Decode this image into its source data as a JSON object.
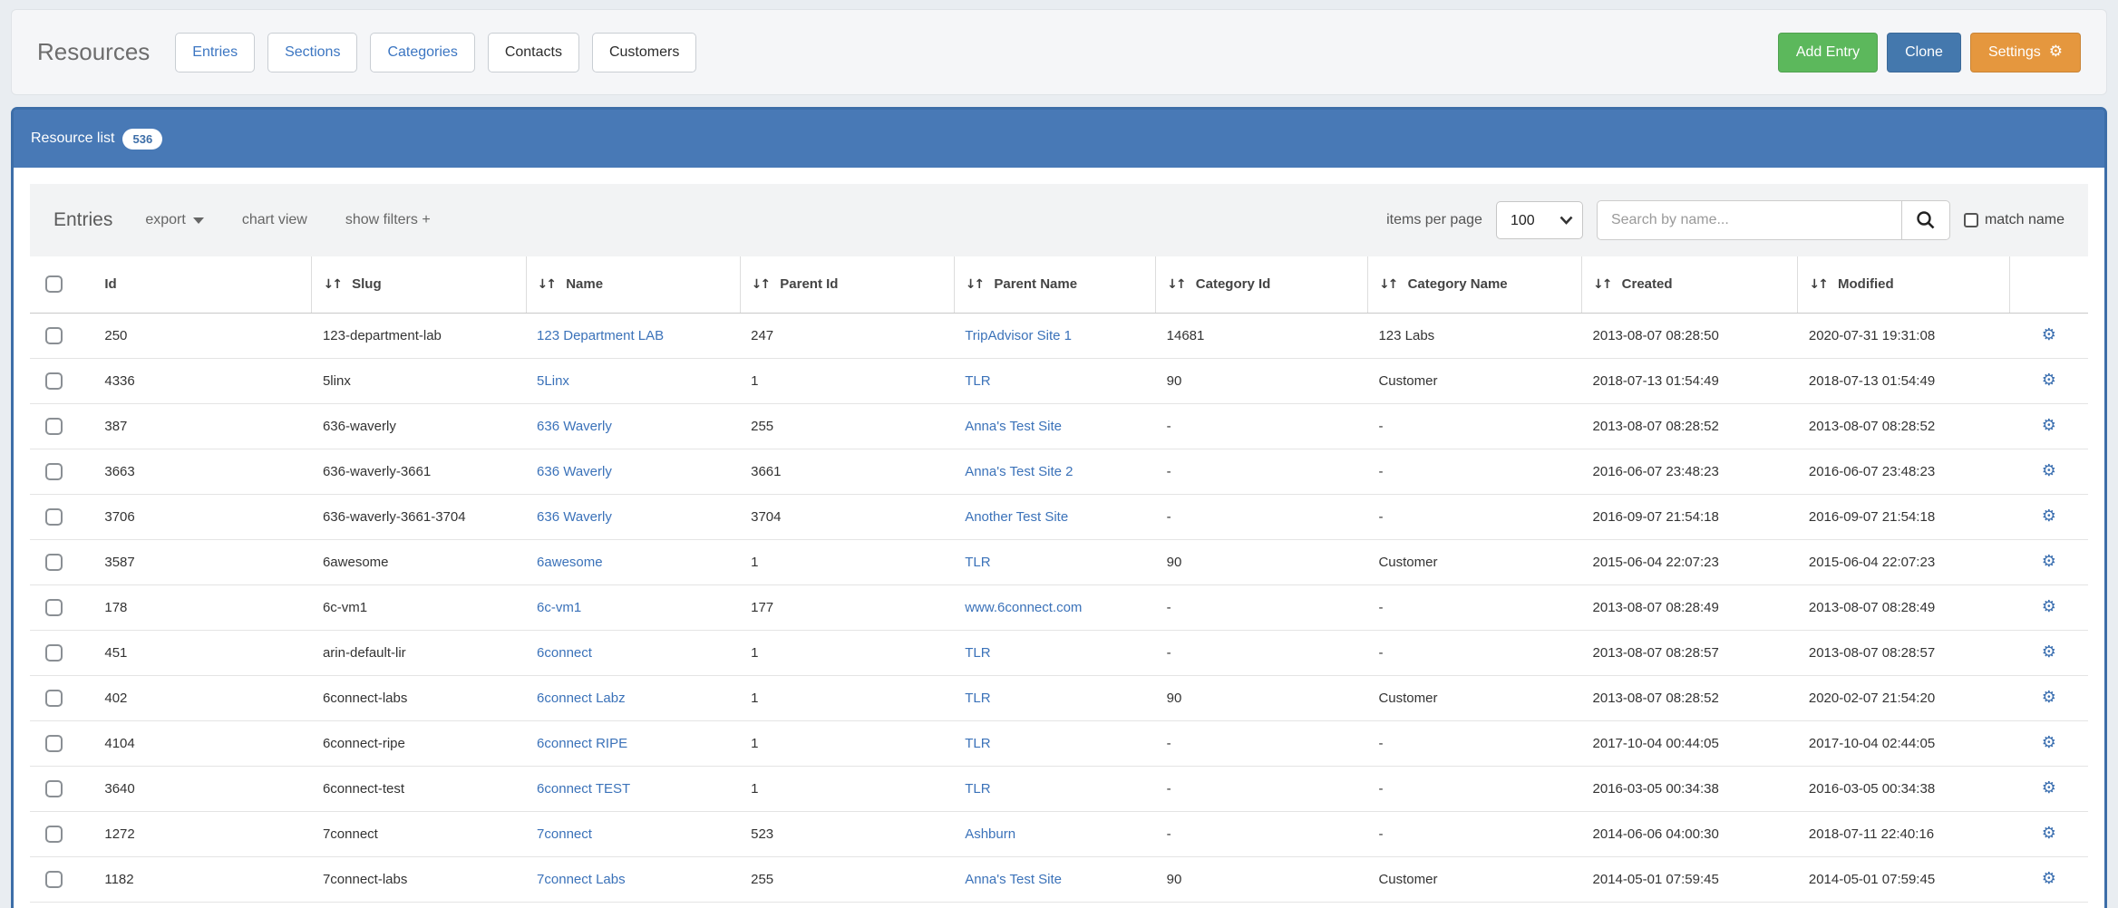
{
  "header": {
    "title": "Resources",
    "tabs": [
      {
        "label": "Entries",
        "accent": true
      },
      {
        "label": "Sections",
        "accent": true
      },
      {
        "label": "Categories",
        "accent": true
      },
      {
        "label": "Contacts",
        "accent": false
      },
      {
        "label": "Customers",
        "accent": false
      }
    ],
    "buttons": [
      {
        "label": "Add Entry",
        "color": "#5cb85c",
        "icon": null
      },
      {
        "label": "Clone",
        "color": "#4478ad",
        "icon": null
      },
      {
        "label": "Settings",
        "color": "#e5973e",
        "icon": "gear"
      }
    ]
  },
  "panel": {
    "title": "Resource list",
    "count": "536"
  },
  "toolbar": {
    "title": "Entries",
    "export_label": "export",
    "chart_view_label": "chart view",
    "show_filters_label": "show filters +",
    "items_per_page_label": "items per page",
    "items_per_page_value": "100",
    "search_placeholder": "Search by name...",
    "match_name_label": "match name"
  },
  "table": {
    "columns": [
      {
        "key": "id",
        "label": "Id",
        "sortable": false
      },
      {
        "key": "slug",
        "label": "Slug",
        "sortable": true
      },
      {
        "key": "name",
        "label": "Name",
        "sortable": true
      },
      {
        "key": "parent_id",
        "label": "Parent Id",
        "sortable": true
      },
      {
        "key": "parent_name",
        "label": "Parent Name",
        "sortable": true
      },
      {
        "key": "category_id",
        "label": "Category Id",
        "sortable": true
      },
      {
        "key": "category_name",
        "label": "Category Name",
        "sortable": true
      },
      {
        "key": "created",
        "label": "Created",
        "sortable": true
      },
      {
        "key": "modified",
        "label": "Modified",
        "sortable": true
      }
    ],
    "rows": [
      {
        "id": "250",
        "slug": "123-department-lab",
        "name": "123 Department LAB",
        "parent_id": "247",
        "parent_name": "TripAdvisor Site 1",
        "category_id": "14681",
        "category_name": "123 Labs",
        "created": "2013-08-07 08:28:50",
        "modified": "2020-07-31 19:31:08"
      },
      {
        "id": "4336",
        "slug": "5linx",
        "name": "5Linx",
        "parent_id": "1",
        "parent_name": "TLR",
        "category_id": "90",
        "category_name": "Customer",
        "created": "2018-07-13 01:54:49",
        "modified": "2018-07-13 01:54:49"
      },
      {
        "id": "387",
        "slug": "636-waverly",
        "name": "636 Waverly",
        "parent_id": "255",
        "parent_name": "Anna's Test Site",
        "category_id": "-",
        "category_name": "-",
        "created": "2013-08-07 08:28:52",
        "modified": "2013-08-07 08:28:52"
      },
      {
        "id": "3663",
        "slug": "636-waverly-3661",
        "name": "636 Waverly",
        "parent_id": "3661",
        "parent_name": "Anna's Test Site 2",
        "category_id": "-",
        "category_name": "-",
        "created": "2016-06-07 23:48:23",
        "modified": "2016-06-07 23:48:23"
      },
      {
        "id": "3706",
        "slug": "636-waverly-3661-3704",
        "name": "636 Waverly",
        "parent_id": "3704",
        "parent_name": "Another Test Site",
        "category_id": "-",
        "category_name": "-",
        "created": "2016-09-07 21:54:18",
        "modified": "2016-09-07 21:54:18"
      },
      {
        "id": "3587",
        "slug": "6awesome",
        "name": "6awesome",
        "parent_id": "1",
        "parent_name": "TLR",
        "category_id": "90",
        "category_name": "Customer",
        "created": "2015-06-04 22:07:23",
        "modified": "2015-06-04 22:07:23"
      },
      {
        "id": "178",
        "slug": "6c-vm1",
        "name": "6c-vm1",
        "parent_id": "177",
        "parent_name": "www.6connect.com",
        "category_id": "-",
        "category_name": "-",
        "created": "2013-08-07 08:28:49",
        "modified": "2013-08-07 08:28:49"
      },
      {
        "id": "451",
        "slug": "arin-default-lir",
        "name": "6connect",
        "parent_id": "1",
        "parent_name": "TLR",
        "category_id": "-",
        "category_name": "-",
        "created": "2013-08-07 08:28:57",
        "modified": "2013-08-07 08:28:57"
      },
      {
        "id": "402",
        "slug": "6connect-labs",
        "name": "6connect Labz",
        "parent_id": "1",
        "parent_name": "TLR",
        "category_id": "90",
        "category_name": "Customer",
        "created": "2013-08-07 08:28:52",
        "modified": "2020-02-07 21:54:20"
      },
      {
        "id": "4104",
        "slug": "6connect-ripe",
        "name": "6connect RIPE",
        "parent_id": "1",
        "parent_name": "TLR",
        "category_id": "-",
        "category_name": "-",
        "created": "2017-10-04 00:44:05",
        "modified": "2017-10-04 02:44:05"
      },
      {
        "id": "3640",
        "slug": "6connect-test",
        "name": "6connect TEST",
        "parent_id": "1",
        "parent_name": "TLR",
        "category_id": "-",
        "category_name": "-",
        "created": "2016-03-05 00:34:38",
        "modified": "2016-03-05 00:34:38"
      },
      {
        "id": "1272",
        "slug": "7connect",
        "name": "7connect",
        "parent_id": "523",
        "parent_name": "Ashburn",
        "category_id": "-",
        "category_name": "-",
        "created": "2014-06-06 04:00:30",
        "modified": "2018-07-11 22:40:16"
      },
      {
        "id": "1182",
        "slug": "7connect-labs",
        "name": "7connect Labs",
        "parent_id": "255",
        "parent_name": "Anna's Test Site",
        "category_id": "90",
        "category_name": "Customer",
        "created": "2014-05-01 07:59:45",
        "modified": "2014-05-01 07:59:45"
      }
    ]
  },
  "icons": {
    "sort": "↓↑",
    "gear": "⚙"
  },
  "colors": {
    "accent_blue": "#3c76c2",
    "panel_blue": "#4879b6",
    "panel_border": "#3d6ea8",
    "link_blue": "#3b72b9",
    "add_green": "#5cb85c",
    "clone_blue": "#4478ad",
    "settings_orange": "#e5973e"
  }
}
